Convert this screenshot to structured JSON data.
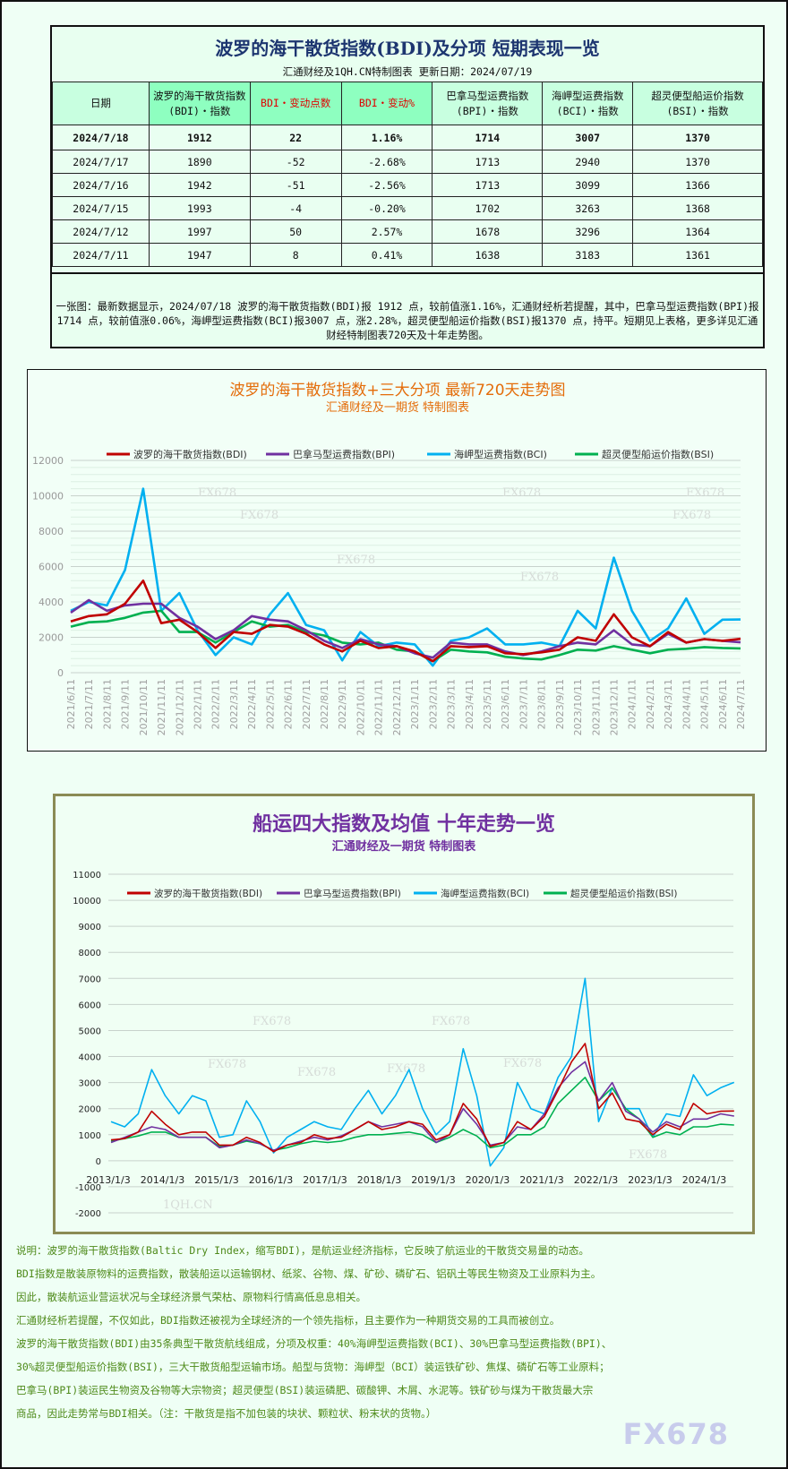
{
  "table": {
    "title": "波罗的海干散货指数(BDI)及分项 短期表现一览",
    "subtitle": "汇通财经及1QH.CN特制图表    更新日期：2024/07/19",
    "headers": [
      {
        "l1": "日期",
        "l2": ""
      },
      {
        "l1": "波罗的海干散货指数",
        "l2": "(BDI)・指数"
      },
      {
        "l1": "BDI・变动点数",
        "l2": ""
      },
      {
        "l1": "BDI・变动%",
        "l2": ""
      },
      {
        "l1": "巴拿马型运费指数",
        "l2": "(BPI)・指数"
      },
      {
        "l1": "海岬型运费指数",
        "l2": "(BCI)・指数"
      },
      {
        "l1": "超灵便型船运价指数",
        "l2": "(BSI)・指数"
      }
    ],
    "rows": [
      [
        "2024/7/18",
        "1912",
        "22",
        "1.16%",
        "1714",
        "3007",
        "1370"
      ],
      [
        "2024/7/17",
        "1890",
        "-52",
        "-2.68%",
        "1713",
        "2940",
        "1370"
      ],
      [
        "2024/7/16",
        "1942",
        "-51",
        "-2.56%",
        "1713",
        "3099",
        "1366"
      ],
      [
        "2024/7/15",
        "1993",
        "-4",
        "-0.20%",
        "1702",
        "3263",
        "1368"
      ],
      [
        "2024/7/12",
        "1997",
        "50",
        "2.57%",
        "1678",
        "3296",
        "1364"
      ],
      [
        "2024/7/11",
        "1947",
        "8",
        "0.41%",
        "1638",
        "3183",
        "1361"
      ]
    ],
    "note": "一张图：最新数据显示，2024/07/18 波罗的海干散货指数(BDI)报 1912 点，较前值涨1.16%，汇通财经析若提醒，其中，巴拿马型运费指数(BPI)报1714 点，较前值涨0.06%，海岬型运费指数(BCI)报3007 点，涨2.28%，超灵便型船运价指数(BSI)报1370 点，持平。短期见上表格，更多详见汇通财经特制图表720天及十年走势图。"
  },
  "colors": {
    "BDI": "#c00000",
    "BPI": "#7030a0",
    "BCI": "#00b0f0",
    "BSI": "#00b050"
  },
  "chart_data": [
    {
      "type": "line",
      "title": "波罗的海干散货指数+三大分项  最新720天走势图",
      "subtitle": "汇通财经及一期货  特制图表",
      "ylim": [
        0,
        12000
      ],
      "yticks": [
        "0",
        "2000",
        "4000",
        "6000",
        "8000",
        "10000",
        "12000"
      ],
      "legend": "top",
      "grid": true,
      "categories": [
        "2021/6/11",
        "2021/7/11",
        "2021/8/11",
        "2021/9/11",
        "2021/10/11",
        "2021/11/11",
        "2021/12/11",
        "2022/1/11",
        "2022/2/11",
        "2022/3/11",
        "2022/4/11",
        "2022/5/11",
        "2022/6/11",
        "2022/7/11",
        "2022/8/11",
        "2022/9/11",
        "2022/10/11",
        "2022/11/11",
        "2022/12/11",
        "2023/1/11",
        "2023/2/11",
        "2023/3/11",
        "2023/4/11",
        "2023/5/11",
        "2023/6/11",
        "2023/7/11",
        "2023/8/11",
        "2023/9/11",
        "2023/10/11",
        "2023/11/11",
        "2023/12/11",
        "2024/1/11",
        "2024/2/11",
        "2024/3/11",
        "2024/4/11",
        "2024/5/11",
        "2024/6/11",
        "2024/7/11"
      ],
      "series": [
        {
          "name": "波罗的海干散货指数(BDI)",
          "key": "BDI",
          "values": [
            2900,
            3200,
            3300,
            3900,
            5200,
            2800,
            3000,
            2300,
            1400,
            2300,
            2200,
            2700,
            2600,
            2200,
            1600,
            1200,
            1800,
            1400,
            1500,
            1200,
            650,
            1500,
            1450,
            1500,
            1100,
            1050,
            1150,
            1300,
            2000,
            1800,
            3300,
            2000,
            1500,
            2300,
            1700,
            1900,
            1800,
            1912
          ]
        },
        {
          "name": "巴拿马型运费指数(BPI)",
          "key": "BPI",
          "values": [
            3400,
            4100,
            3500,
            3800,
            3900,
            3900,
            3100,
            2600,
            1900,
            2400,
            3200,
            3000,
            2900,
            2400,
            1800,
            1400,
            1900,
            1600,
            1500,
            1100,
            850,
            1700,
            1600,
            1600,
            1200,
            1000,
            1200,
            1500,
            1700,
            1600,
            2400,
            1600,
            1500,
            2200,
            1700,
            1900,
            1800,
            1714
          ]
        },
        {
          "name": "海岬型运费指数(BCI)",
          "key": "BCI",
          "values": [
            3500,
            4000,
            3800,
            5800,
            10400,
            3500,
            4500,
            2400,
            1000,
            2000,
            1600,
            3300,
            4500,
            2700,
            2400,
            700,
            2300,
            1500,
            1700,
            1600,
            400,
            1800,
            2000,
            2500,
            1600,
            1600,
            1700,
            1500,
            3500,
            2500,
            6500,
            3500,
            1800,
            2500,
            4200,
            2200,
            3000,
            3007
          ]
        },
        {
          "name": "超灵便型船运价指数(BSI)",
          "key": "BSI",
          "values": [
            2600,
            2850,
            2900,
            3100,
            3400,
            3500,
            2300,
            2300,
            1700,
            2300,
            2900,
            2600,
            2700,
            2300,
            2100,
            1700,
            1600,
            1700,
            1300,
            1200,
            650,
            1300,
            1200,
            1150,
            900,
            800,
            750,
            1000,
            1300,
            1250,
            1500,
            1300,
            1100,
            1300,
            1350,
            1450,
            1400,
            1370
          ]
        }
      ],
      "watermarks": [
        "FX678",
        "FX678",
        "FX678",
        "FX678",
        "FX678",
        "FX678",
        "FX678"
      ]
    },
    {
      "type": "line",
      "title": "船运四大指数及均值 十年走势一览",
      "subtitle": "汇通财经及一期货 特制图表",
      "ylim": [
        -2000,
        11000
      ],
      "yticks": [
        "-2000",
        "-1000",
        "0",
        "1000",
        "2000",
        "3000",
        "4000",
        "5000",
        "6000",
        "7000",
        "8000",
        "9000",
        "10000",
        "11000"
      ],
      "legend": "top",
      "grid": true,
      "xticks": [
        "2013/1/3",
        "2014/1/3",
        "2015/1/3",
        "2016/1/3",
        "2017/1/3",
        "2018/1/3",
        "2019/1/3",
        "2020/1/3",
        "2021/1/3",
        "2022/1/3",
        "2023/1/3",
        "2024/1/3"
      ],
      "x_quarters_from": "2013Q1",
      "series": [
        {
          "name": "波罗的海干散货指数(BDI)",
          "key": "BDI",
          "values": [
            800,
            850,
            1100,
            1900,
            1400,
            1000,
            1100,
            1100,
            600,
            600,
            900,
            700,
            350,
            600,
            700,
            1000,
            850,
            900,
            1200,
            1500,
            1200,
            1300,
            1500,
            1400,
            800,
            1000,
            2200,
            1600,
            550,
            700,
            1500,
            1200,
            1700,
            2700,
            3800,
            4500,
            2000,
            2600,
            1600,
            1500,
            1000,
            1400,
            1200,
            2200,
            1800,
            1900,
            1912
          ]
        },
        {
          "name": "巴拿马型运费指数(BPI)",
          "key": "BPI",
          "values": [
            700,
            900,
            1100,
            1300,
            1200,
            900,
            900,
            900,
            500,
            600,
            800,
            650,
            400,
            600,
            750,
            900,
            800,
            950,
            1200,
            1500,
            1300,
            1400,
            1500,
            1300,
            700,
            1000,
            2000,
            1400,
            600,
            700,
            1300,
            1200,
            1800,
            2800,
            3400,
            3800,
            2300,
            3000,
            1900,
            1600,
            1100,
            1500,
            1300,
            1600,
            1600,
            1800,
            1714
          ]
        },
        {
          "name": "海岬型运费指数(BCI)",
          "key": "BCI",
          "values": [
            1500,
            1300,
            1800,
            3500,
            2500,
            1800,
            2500,
            2300,
            900,
            1000,
            2300,
            1500,
            300,
            900,
            1200,
            1500,
            1300,
            1200,
            2000,
            2700,
            1800,
            2500,
            3500,
            2000,
            1000,
            1500,
            4300,
            2500,
            -200,
            500,
            3000,
            2000,
            1800,
            3200,
            4000,
            7000,
            1500,
            2800,
            2000,
            2000,
            900,
            1800,
            1700,
            3300,
            2500,
            2800,
            3007
          ]
        },
        {
          "name": "超灵便型船运价指数(BSI)",
          "key": "BSI",
          "values": [
            750,
            850,
            950,
            1100,
            1100,
            900,
            900,
            900,
            550,
            600,
            750,
            650,
            400,
            500,
            650,
            750,
            700,
            750,
            900,
            1000,
            1000,
            1050,
            1100,
            1000,
            700,
            900,
            1200,
            950,
            500,
            600,
            1000,
            1000,
            1300,
            2200,
            2700,
            3200,
            2300,
            2800,
            2000,
            1600,
            900,
            1100,
            1000,
            1300,
            1300,
            1400,
            1370
          ]
        }
      ],
      "watermarks": [
        "FX678",
        "FX678",
        "FX678",
        "FX678",
        "FX678",
        "FX678",
        "FX678",
        "1QH.CN"
      ]
    }
  ],
  "description": [
    "说明：波罗的海干散货指数(Baltic Dry Index，缩写BDI)，是航运业经济指标，它反映了航运业的干散货交易量的动态。",
    "BDI指数是散装原物料的运费指数，散装船运以运输钢材、纸浆、谷物、煤、矿砂、磷矿石、铝矾土等民生物资及工业原料为主。",
    "因此，散装航运业营运状况与全球经济景气荣枯、原物料行情高低息息相关。",
    "汇通财经析若提醒，不仅如此，BDI指数还被视为全球经济的一个领先指标，且主要作为一种期货交易的工具而被创立。",
    "波罗的海干散货指数(BDI)由35条典型干散货航线组成，分项及权重：40%海岬型运费指数(BCI)、30%巴拿马型运费指数(BPI)、",
    "30%超灵便型船运价指数(BSI)，三大干散货船型运输市场。船型与货物：海岬型（BCI）装运铁矿砂、焦煤、磷矿石等工业原料；",
    "巴拿马(BPI)装运民生物资及谷物等大宗物资；超灵便型(BSI)装运磷肥、碳酸钾、木屑、水泥等。铁矿砂与煤为干散货最大宗",
    "商品，因此走势常与BDI相关。（注：干散货是指不加包装的块状、颗粒状、粉末状的货物。）"
  ],
  "watermark": "FX678"
}
